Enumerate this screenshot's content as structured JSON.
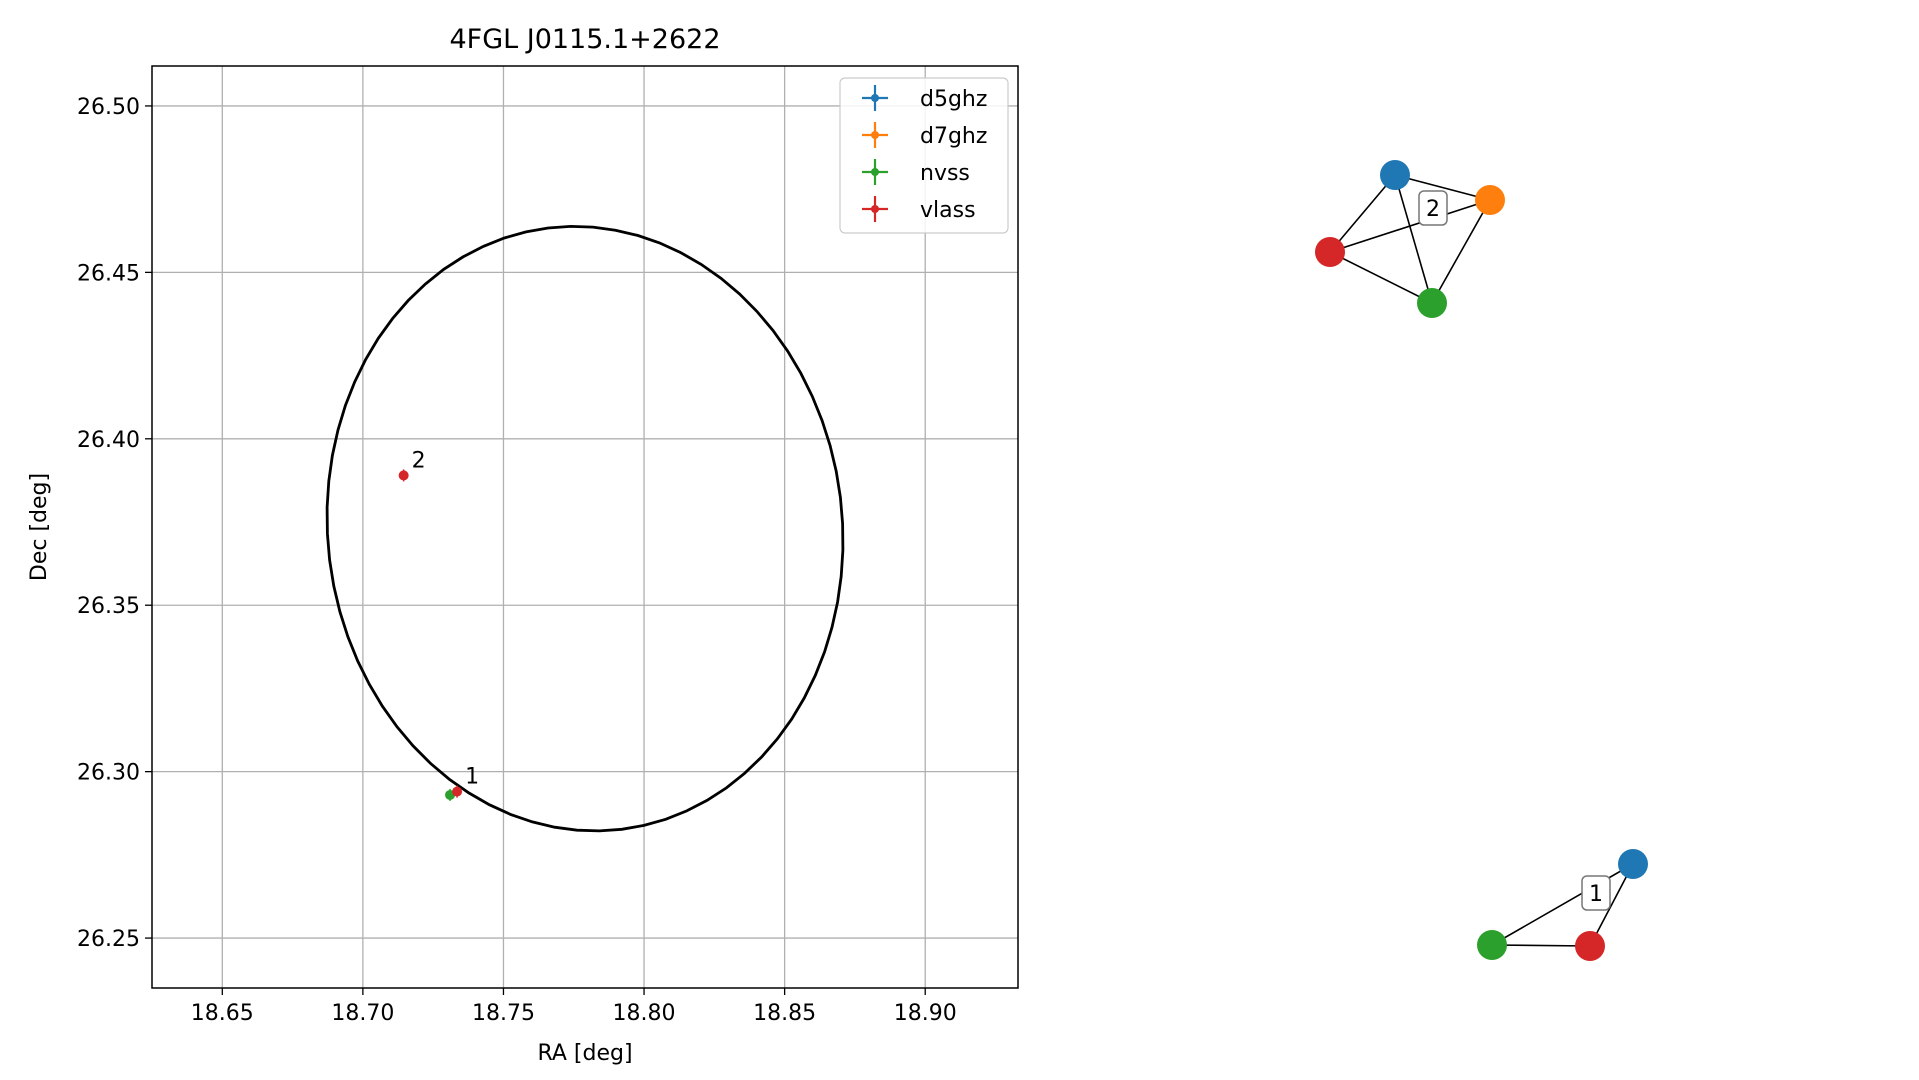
{
  "chart_data": [
    {
      "type": "scatter",
      "title": "4FGL J0115.1+2622",
      "xlabel": "RA [deg]",
      "ylabel": "Dec [deg]",
      "xlim": [
        18.625,
        18.933
      ],
      "ylim": [
        26.235,
        26.512
      ],
      "xticks": [
        18.65,
        18.7,
        18.75,
        18.8,
        18.85,
        18.9
      ],
      "xtick_labels": [
        "18.65",
        "18.70",
        "18.75",
        "18.80",
        "18.85",
        "18.90"
      ],
      "yticks": [
        26.25,
        26.3,
        26.35,
        26.4,
        26.45,
        26.5
      ],
      "ytick_labels": [
        "26.25",
        "26.30",
        "26.35",
        "26.40",
        "26.45",
        "26.50"
      ],
      "grid": true,
      "legend_position": "top-right",
      "series": [
        {
          "name": "d5ghz",
          "color": "#1f77b4",
          "x": [],
          "y": []
        },
        {
          "name": "d7ghz",
          "color": "#ff7f0e",
          "x": [],
          "y": []
        },
        {
          "name": "nvss",
          "color": "#2ca02c",
          "x": [
            18.731
          ],
          "y": [
            26.293
          ]
        },
        {
          "name": "vlass",
          "color": "#d62728",
          "x": [
            18.7335,
            18.7145
          ],
          "y": [
            26.294,
            26.389
          ]
        }
      ],
      "ellipse": {
        "center": [
          18.779,
          26.373
        ],
        "x_semi_axis": 0.0915,
        "y_semi_axis": 0.091,
        "tilt_deg": -7,
        "color": "#000000"
      },
      "annotations": [
        {
          "text": "1",
          "x": 18.7335,
          "y": 26.294
        },
        {
          "text": "2",
          "x": 18.7145,
          "y": 26.389
        }
      ]
    },
    {
      "type": "network",
      "clusters": [
        {
          "label": "2",
          "nodes": [
            {
              "catalog": "d5ghz",
              "color": "#1f77b4"
            },
            {
              "catalog": "d7ghz",
              "color": "#ff7f0e"
            },
            {
              "catalog": "vlass",
              "color": "#d62728"
            },
            {
              "catalog": "nvss",
              "color": "#2ca02c"
            }
          ],
          "edges": [
            [
              0,
              1
            ],
            [
              0,
              2
            ],
            [
              0,
              3
            ],
            [
              1,
              2
            ],
            [
              1,
              3
            ],
            [
              2,
              3
            ]
          ]
        },
        {
          "label": "1",
          "nodes": [
            {
              "catalog": "d5ghz",
              "color": "#1f77b4"
            },
            {
              "catalog": "nvss",
              "color": "#2ca02c"
            },
            {
              "catalog": "vlass",
              "color": "#d62728"
            }
          ],
          "edges": [
            [
              0,
              1
            ],
            [
              0,
              2
            ],
            [
              1,
              2
            ]
          ]
        }
      ]
    }
  ]
}
